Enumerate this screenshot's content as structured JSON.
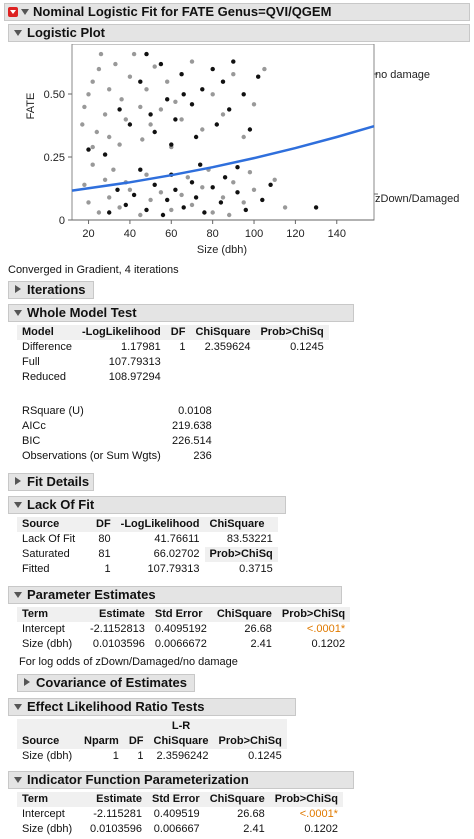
{
  "title": "Nominal Logistic Fit for FATE Genus=QVI/QGEM",
  "logistic_plot": {
    "header": "Logistic Plot",
    "ylabel": "FATE",
    "xlabel": "Size (dbh)",
    "y_ticks": [
      "0",
      "0.25",
      "0.50"
    ],
    "x_ticks": [
      "20",
      "40",
      "60",
      "80",
      "100",
      "120",
      "140"
    ],
    "right_labels": [
      "no damage",
      "zDown/Damaged"
    ],
    "curve_color": "#2f6fdc"
  },
  "chart_data": {
    "type": "scatter",
    "xlabel": "Size (dbh)",
    "ylabel": "FATE",
    "xlim": [
      12,
      158
    ],
    "ylim": [
      0,
      0.7
    ],
    "curve": {
      "name": "",
      "x": [
        12,
        20,
        40,
        60,
        80,
        100,
        120,
        140,
        158
      ],
      "y": [
        0.117,
        0.126,
        0.15,
        0.178,
        0.21,
        0.246,
        0.286,
        0.33,
        0.373
      ]
    },
    "series": [
      {
        "name": "",
        "color": "#999999",
        "points": [
          [
            18,
            0.45
          ],
          [
            20,
            0.5
          ],
          [
            22,
            0.55
          ],
          [
            17,
            0.38
          ],
          [
            25,
            0.6
          ],
          [
            28,
            0.42
          ],
          [
            30,
            0.52
          ],
          [
            24,
            0.35
          ],
          [
            33,
            0.62
          ],
          [
            36,
            0.48
          ],
          [
            38,
            0.4
          ],
          [
            40,
            0.57
          ],
          [
            42,
            0.66
          ],
          [
            35,
            0.3
          ],
          [
            45,
            0.45
          ],
          [
            48,
            0.52
          ],
          [
            50,
            0.38
          ],
          [
            52,
            0.61
          ],
          [
            55,
            0.44
          ],
          [
            26,
            0.66
          ],
          [
            30,
            0.33
          ],
          [
            22,
            0.29
          ],
          [
            46,
            0.32
          ],
          [
            58,
            0.55
          ],
          [
            62,
            0.47
          ],
          [
            65,
            0.4
          ],
          [
            70,
            0.63
          ],
          [
            75,
            0.36
          ],
          [
            80,
            0.5
          ],
          [
            85,
            0.42
          ],
          [
            90,
            0.58
          ],
          [
            95,
            0.33
          ],
          [
            100,
            0.46
          ],
          [
            105,
            0.6
          ],
          [
            60,
            0.29
          ],
          [
            20,
            0.07
          ],
          [
            25,
            0.03
          ],
          [
            30,
            0.09
          ],
          [
            35,
            0.05
          ],
          [
            40,
            0.12
          ],
          [
            45,
            0.02
          ],
          [
            50,
            0.08
          ],
          [
            55,
            0.11
          ],
          [
            60,
            0.04
          ],
          [
            65,
            0.1
          ],
          [
            70,
            0.06
          ],
          [
            75,
            0.13
          ],
          [
            80,
            0.03
          ],
          [
            85,
            0.09
          ],
          [
            90,
            0.15
          ],
          [
            95,
            0.07
          ],
          [
            100,
            0.12
          ],
          [
            110,
            0.16
          ],
          [
            115,
            0.05
          ],
          [
            18,
            0.14
          ],
          [
            28,
            0.16
          ],
          [
            38,
            0.15
          ],
          [
            48,
            0.18
          ],
          [
            68,
            0.17
          ],
          [
            78,
            0.2
          ],
          [
            88,
            0.02
          ],
          [
            98,
            0.19
          ],
          [
            22,
            0.22
          ],
          [
            32,
            0.2
          ]
        ]
      },
      {
        "name": "",
        "color": "#111111",
        "points": [
          [
            20,
            0.28
          ],
          [
            28,
            0.26
          ],
          [
            35,
            0.44
          ],
          [
            40,
            0.38
          ],
          [
            45,
            0.55
          ],
          [
            50,
            0.42
          ],
          [
            52,
            0.35
          ],
          [
            55,
            0.62
          ],
          [
            58,
            0.48
          ],
          [
            60,
            0.3
          ],
          [
            62,
            0.4
          ],
          [
            65,
            0.58
          ],
          [
            70,
            0.46
          ],
          [
            72,
            0.33
          ],
          [
            75,
            0.52
          ],
          [
            80,
            0.6
          ],
          [
            82,
            0.38
          ],
          [
            85,
            0.55
          ],
          [
            88,
            0.44
          ],
          [
            90,
            0.63
          ],
          [
            95,
            0.5
          ],
          [
            98,
            0.36
          ],
          [
            102,
            0.57
          ],
          [
            48,
            0.66
          ],
          [
            66,
            0.5
          ],
          [
            30,
            0.03
          ],
          [
            38,
            0.06
          ],
          [
            42,
            0.1
          ],
          [
            48,
            0.04
          ],
          [
            52,
            0.14
          ],
          [
            56,
            0.02
          ],
          [
            58,
            0.08
          ],
          [
            62,
            0.12
          ],
          [
            66,
            0.05
          ],
          [
            70,
            0.15
          ],
          [
            72,
            0.09
          ],
          [
            76,
            0.03
          ],
          [
            80,
            0.13
          ],
          [
            84,
            0.07
          ],
          [
            86,
            0.17
          ],
          [
            92,
            0.11
          ],
          [
            96,
            0.04
          ],
          [
            104,
            0.08
          ],
          [
            108,
            0.14
          ],
          [
            130,
            0.05
          ],
          [
            45,
            0.2
          ],
          [
            60,
            0.18
          ],
          [
            74,
            0.22
          ],
          [
            92,
            0.21
          ],
          [
            34,
            0.12
          ]
        ]
      }
    ]
  },
  "converged_text": "Converged in Gradient, 4 iterations",
  "iterations": {
    "header": "Iterations"
  },
  "whole_model": {
    "header": "Whole Model Test",
    "columns": [
      "Model",
      "-LogLikelihood",
      "DF",
      "ChiSquare",
      "Prob>ChiSq"
    ],
    "rows": [
      [
        "Difference",
        "1.17981",
        "1",
        "2.359624",
        "0.1245"
      ],
      [
        "Full",
        "107.79313",
        "",
        "",
        ""
      ],
      [
        "Reduced",
        "108.97294",
        "",
        "",
        ""
      ]
    ],
    "stats": [
      [
        "RSquare (U)",
        "0.0108"
      ],
      [
        "AICc",
        "219.638"
      ],
      [
        "BIC",
        "226.514"
      ],
      [
        "Observations (or Sum Wgts)",
        "236"
      ]
    ]
  },
  "fit_details": {
    "header": "Fit Details"
  },
  "lack_of_fit": {
    "header": "Lack Of Fit",
    "columns": [
      "Source",
      "DF",
      "-LogLikelihood",
      "ChiSquare"
    ],
    "rows": [
      [
        "Lack Of Fit",
        "80",
        "41.76611",
        "83.53221"
      ],
      [
        "Saturated",
        "81",
        "66.02702",
        "Prob>ChiSq"
      ],
      [
        "Fitted",
        "1",
        "107.79313",
        "0.3715"
      ]
    ]
  },
  "parameter_estimates": {
    "header": "Parameter Estimates",
    "columns": [
      "Term",
      "Estimate",
      "Std Error",
      "ChiSquare",
      "Prob>ChiSq"
    ],
    "rows": [
      [
        "Intercept",
        "-2.1152813",
        "0.4095192",
        "26.68",
        "<.0001*"
      ],
      [
        "Size (dbh)",
        "0.0103596",
        "0.0066672",
        "2.41",
        "0.1202"
      ]
    ],
    "note": "For log odds of zDown/Damaged/no damage"
  },
  "covariance": {
    "header": "Covariance of Estimates"
  },
  "effect_lr": {
    "header": "Effect Likelihood Ratio Tests",
    "col_top": "L-R",
    "columns": [
      "Source",
      "Nparm",
      "DF",
      "ChiSquare",
      "Prob>ChiSq"
    ],
    "rows": [
      [
        "Size (dbh)",
        "1",
        "1",
        "2.3596242",
        "0.1245"
      ]
    ]
  },
  "indicator": {
    "header": "Indicator Function Parameterization",
    "columns": [
      "Term",
      "Estimate",
      "Std Error",
      "ChiSquare",
      "Prob>ChiSq"
    ],
    "rows": [
      [
        "Intercept",
        "-2.115281",
        "0.409519",
        "26.68",
        "<.0001*"
      ],
      [
        "Size (dbh)",
        "0.0103596",
        "0.006667",
        "2.41",
        "0.1202"
      ]
    ]
  }
}
